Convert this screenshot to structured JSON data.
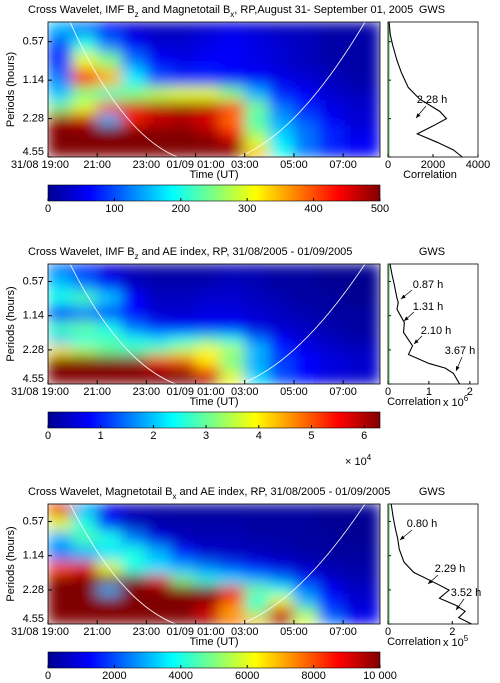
{
  "chart_data": [
    {
      "type": "heatmap",
      "title": [
        "Cross Wavelet, IMF B",
        "z",
        " and Magnetotail B",
        "x",
        ", RP,August 31- September 01, 2005"
      ],
      "ylabel": "Periods (hours)",
      "xlabel": "Time (UT)",
      "xlim": [
        19,
        32.5
      ],
      "xticks": [
        {
          "value": 19,
          "label": "31/08 19:00"
        },
        {
          "value": 21,
          "label": "21:00"
        },
        {
          "value": 23,
          "label": "23:00"
        },
        {
          "value": 25,
          "label": "01/09 01:00"
        },
        {
          "value": 27,
          "label": "03:00"
        },
        {
          "value": 29,
          "label": "05:00"
        },
        {
          "value": 31,
          "label": "07:00"
        }
      ],
      "ylim": [
        0.4,
        4.55
      ],
      "yticks": [
        0.57,
        1.14,
        2.28,
        4.55
      ],
      "log_y": true,
      "times": [
        19.5,
        20.5,
        21.5,
        22.5,
        23.5,
        24.5,
        25.5,
        26.5,
        27.5,
        28.5,
        29.5,
        30.5,
        31.5
      ],
      "periods": [
        0.45,
        0.6,
        0.8,
        1.1,
        1.5,
        1.9,
        2.3,
        2.9,
        3.6,
        4.4
      ],
      "z": [
        [
          150,
          120,
          60,
          40,
          30,
          30,
          40,
          50,
          40,
          30,
          30,
          20,
          20
        ],
        [
          100,
          200,
          120,
          60,
          40,
          40,
          50,
          60,
          50,
          40,
          30,
          20,
          20
        ],
        [
          80,
          300,
          250,
          120,
          60,
          50,
          60,
          60,
          50,
          40,
          30,
          20,
          20
        ],
        [
          120,
          420,
          350,
          180,
          100,
          80,
          80,
          70,
          60,
          50,
          40,
          30,
          20
        ],
        [
          160,
          250,
          220,
          250,
          280,
          300,
          300,
          250,
          150,
          80,
          60,
          40,
          30
        ],
        [
          250,
          300,
          420,
          460,
          480,
          490,
          480,
          420,
          250,
          120,
          80,
          50,
          40
        ],
        [
          480,
          460,
          150,
          420,
          460,
          470,
          450,
          380,
          220,
          140,
          100,
          60,
          40
        ],
        [
          500,
          500,
          500,
          500,
          500,
          500,
          480,
          420,
          250,
          160,
          120,
          80,
          50
        ],
        [
          500,
          500,
          500,
          500,
          500,
          500,
          500,
          480,
          300,
          180,
          120,
          80,
          60
        ],
        [
          500,
          500,
          500,
          500,
          500,
          500,
          500,
          500,
          350,
          200,
          120,
          80,
          60
        ]
      ],
      "colorbar": {
        "lim": [
          0,
          500
        ],
        "ticks": [
          0,
          100,
          200,
          300,
          400,
          500
        ]
      },
      "gws": {
        "title": "GWS",
        "xlabel": "Correlation",
        "xlim": [
          0,
          4000
        ],
        "xticks": [
          0,
          2000,
          4000
        ],
        "periods": [
          0.4,
          0.5,
          0.6,
          0.8,
          1.0,
          1.3,
          1.6,
          2.0,
          2.28,
          2.6,
          3.0,
          3.5,
          4.0,
          4.55
        ],
        "values": [
          50,
          100,
          200,
          400,
          600,
          900,
          1400,
          2300,
          2600,
          2000,
          1300,
          2200,
          2900,
          3300
        ],
        "annotations": [
          "2.28 h"
        ]
      }
    },
    {
      "type": "heatmap",
      "title": [
        "Cross Wavelet, IMF B",
        "z",
        " and AE index, RP, 31/08/2005 - 01/09/2005"
      ],
      "ylabel": "Periods (hours)",
      "xlabel": "Time (UT)",
      "xlim": [
        19,
        32.5
      ],
      "xticks": [
        {
          "value": 19,
          "label": "31/08 19:00"
        },
        {
          "value": 21,
          "label": "21:00"
        },
        {
          "value": 23,
          "label": "23:00"
        },
        {
          "value": 25,
          "label": "01/09 01:00"
        },
        {
          "value": 27,
          "label": "03:00"
        },
        {
          "value": 29,
          "label": "05:00"
        },
        {
          "value": 31,
          "label": "07:00"
        }
      ],
      "ylim": [
        0.4,
        4.55
      ],
      "yticks": [
        0.57,
        1.14,
        2.28,
        4.55
      ],
      "log_y": true,
      "times": [
        19.5,
        20.5,
        21.5,
        22.5,
        23.5,
        24.5,
        25.5,
        26.5,
        27.5,
        28.5,
        29.5,
        30.5,
        31.5
      ],
      "periods": [
        0.45,
        0.6,
        0.8,
        1.1,
        1.5,
        1.9,
        2.3,
        2.9,
        3.6,
        4.4
      ],
      "z": [
        [
          1.5,
          1.0,
          0.5,
          0.3,
          0.2,
          0.2,
          0.2,
          0.3,
          0.3,
          0.2,
          0.2,
          0.1,
          0.1
        ],
        [
          2.0,
          1.5,
          0.8,
          0.4,
          0.3,
          0.3,
          0.3,
          0.4,
          0.3,
          0.2,
          0.2,
          0.1,
          0.1
        ],
        [
          2.5,
          2.8,
          2.0,
          0.8,
          0.4,
          0.4,
          0.5,
          0.5,
          0.4,
          0.3,
          0.2,
          0.2,
          0.1
        ],
        [
          1.0,
          1.5,
          1.2,
          0.8,
          0.5,
          0.5,
          0.6,
          0.6,
          0.5,
          0.4,
          0.3,
          0.2,
          0.2
        ],
        [
          2.8,
          3.0,
          2.5,
          1.5,
          1.0,
          0.8,
          0.8,
          0.8,
          0.6,
          0.5,
          0.4,
          0.3,
          0.2
        ],
        [
          2.0,
          2.5,
          2.8,
          2.5,
          2.2,
          2.5,
          2.8,
          2.5,
          1.5,
          0.8,
          0.5,
          0.4,
          0.3
        ],
        [
          4.0,
          3.5,
          3.0,
          2.8,
          3.0,
          3.5,
          4.0,
          3.5,
          2.0,
          1.0,
          0.7,
          0.5,
          0.4
        ],
        [
          6.3,
          6.3,
          6.3,
          6.2,
          5.5,
          5.0,
          4.0,
          3.0,
          1.8,
          1.2,
          0.8,
          0.6,
          0.5
        ],
        [
          6.3,
          6.3,
          6.3,
          6.3,
          6.3,
          6.3,
          5.5,
          3.5,
          2.0,
          1.2,
          0.8,
          0.6,
          0.5
        ],
        [
          6.3,
          6.3,
          6.3,
          6.3,
          6.3,
          6.3,
          6.3,
          4.0,
          2.2,
          1.3,
          0.9,
          0.6,
          0.5
        ]
      ],
      "colorbar": {
        "lim": [
          0,
          6.3
        ],
        "ticks": [
          0,
          1,
          2,
          3,
          4,
          5,
          6
        ],
        "multiplier": [
          "× 10",
          "4"
        ]
      },
      "gws": {
        "title": "GWS",
        "xlabel": "Correlation",
        "xlim": [
          0,
          2.2
        ],
        "xticks": [
          0,
          1,
          2
        ],
        "multiplier": [
          "x 10",
          "6"
        ],
        "periods": [
          0.4,
          0.5,
          0.6,
          0.8,
          0.87,
          1.0,
          1.31,
          1.6,
          2.1,
          2.5,
          3.0,
          3.3,
          3.67,
          4.55
        ],
        "values": [
          0.05,
          0.1,
          0.15,
          0.22,
          0.25,
          0.22,
          0.4,
          0.38,
          0.6,
          0.5,
          1.0,
          1.4,
          1.6,
          1.75
        ],
        "annotations": [
          "0.87 h",
          "1.31 h",
          "2.10 h",
          "3.67 h"
        ]
      }
    },
    {
      "type": "heatmap",
      "title": [
        "Cross Wavelet, Magnetotail B",
        "x",
        " and AE index, RP, 31/08/2005 - 01/09/2005"
      ],
      "ylabel": "Periods (hours)",
      "xlabel": "Time (UT)",
      "xlim": [
        19,
        32.5
      ],
      "xticks": [
        {
          "value": 19,
          "label": "31/08 19:00"
        },
        {
          "value": 21,
          "label": "21:00"
        },
        {
          "value": 23,
          "label": "23:00"
        },
        {
          "value": 25,
          "label": "01/09 01:00"
        },
        {
          "value": 27,
          "label": "03:00"
        },
        {
          "value": 29,
          "label": "05:00"
        },
        {
          "value": 31,
          "label": "07:00"
        }
      ],
      "ylim": [
        0.4,
        4.55
      ],
      "yticks": [
        0.57,
        1.14,
        2.28,
        4.55
      ],
      "log_y": true,
      "times": [
        19.5,
        20.5,
        21.5,
        22.5,
        23.5,
        24.5,
        25.5,
        26.5,
        27.5,
        28.5,
        29.5,
        30.5,
        31.5
      ],
      "periods": [
        0.45,
        0.6,
        0.8,
        1.1,
        1.5,
        1.9,
        2.3,
        2.9,
        3.6,
        4.4
      ],
      "z": [
        [
          9000,
          3000,
          1000,
          500,
          400,
          300,
          300,
          300,
          300,
          300,
          300,
          200,
          200
        ],
        [
          6000,
          4000,
          1500,
          600,
          400,
          400,
          400,
          400,
          300,
          300,
          300,
          200,
          200
        ],
        [
          3000,
          4500,
          4000,
          2500,
          1000,
          600,
          500,
          500,
          400,
          400,
          300,
          300,
          200
        ],
        [
          2500,
          3000,
          3500,
          4000,
          3000,
          1500,
          800,
          700,
          600,
          500,
          400,
          300,
          300
        ],
        [
          8000,
          9000,
          6000,
          4000,
          3500,
          3000,
          2500,
          2000,
          1500,
          1000,
          700,
          500,
          400
        ],
        [
          10000,
          10000,
          10000,
          10000,
          9000,
          5000,
          4000,
          3500,
          3000,
          2500,
          1500,
          800,
          500
        ],
        [
          10000,
          10000,
          3000,
          10000,
          10000,
          10000,
          10000,
          9000,
          5000,
          4000,
          2500,
          1200,
          700
        ],
        [
          10000,
          10000,
          10000,
          10000,
          10000,
          10000,
          10000,
          8000,
          4000,
          6000,
          3000,
          1500,
          800
        ],
        [
          10000,
          10000,
          10000,
          10000,
          10000,
          10000,
          9000,
          7000,
          5000,
          9000,
          5000,
          2000,
          1000
        ],
        [
          10000,
          10000,
          10000,
          10000,
          10000,
          10000,
          10000,
          8000,
          7000,
          10000,
          6000,
          2500,
          1200
        ]
      ],
      "colorbar": {
        "lim": [
          0,
          10000
        ],
        "ticks": [
          0,
          2000,
          4000,
          6000,
          8000,
          {
            "value": 10000,
            "label": "10 000"
          }
        ]
      },
      "gws": {
        "title": "GWS",
        "xlabel": "Correlation",
        "xlim": [
          0,
          2.8
        ],
        "xticks": [
          0,
          2
        ],
        "multiplier": [
          "x 10",
          "5"
        ],
        "periods": [
          0.4,
          0.5,
          0.6,
          0.7,
          0.8,
          1.0,
          1.3,
          1.6,
          2.0,
          2.29,
          2.7,
          3.1,
          3.52,
          4.0,
          4.55
        ],
        "values": [
          0.1,
          0.15,
          0.2,
          0.25,
          0.3,
          0.35,
          0.5,
          0.8,
          1.5,
          1.9,
          1.6,
          2.1,
          2.4,
          2.2,
          2.6
        ],
        "annotations": [
          "0.80 h",
          "2.29 h",
          "3.52 h"
        ]
      }
    }
  ]
}
